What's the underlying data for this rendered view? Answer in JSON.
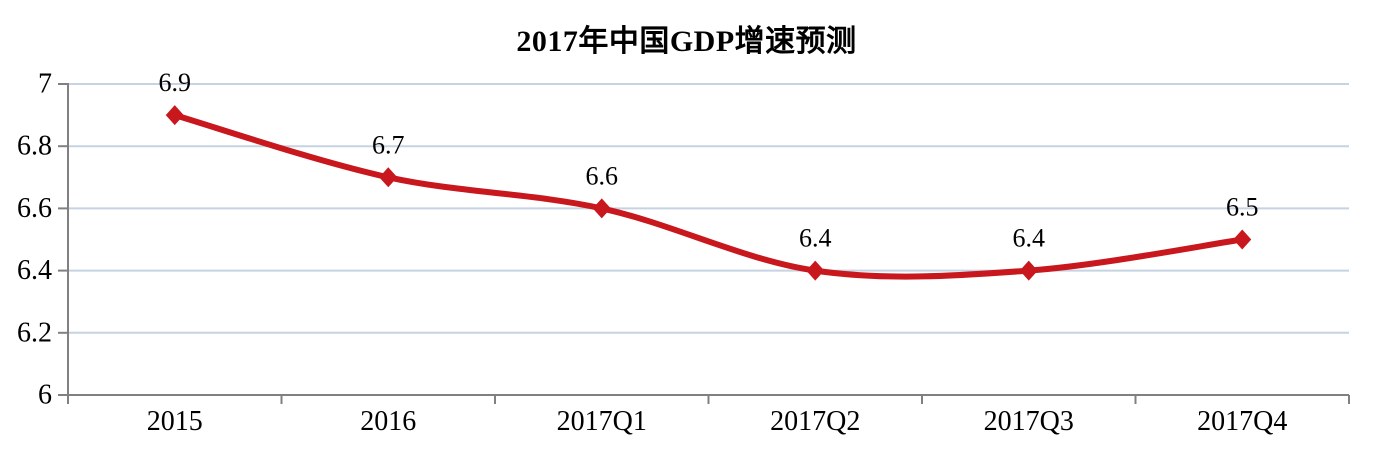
{
  "chart_data": {
    "type": "line",
    "title": "2017年中国GDP增速预测",
    "categories": [
      "2015",
      "2016",
      "2017Q1",
      "2017Q2",
      "2017Q3",
      "2017Q4"
    ],
    "series": [
      {
        "values": [
          6.9,
          6.7,
          6.6,
          6.4,
          6.4,
          6.5
        ]
      }
    ],
    "data_labels": [
      "6.9",
      "6.7",
      "6.6",
      "6.4",
      "6.4",
      "6.5"
    ],
    "xlabel": "",
    "ylabel": "",
    "ylim": [
      6,
      7
    ],
    "yticks": [
      6,
      6.2,
      6.4,
      6.6,
      6.8,
      7
    ],
    "ytick_labels": [
      "6",
      "6.2",
      "6.4",
      "6.6",
      "6.8",
      "7"
    ],
    "grid": true,
    "legend": "none",
    "smooth": true,
    "marker": "diamond",
    "colors": {
      "line": "#C8171D",
      "marker": "#C8171D",
      "gridline": "#C5D3E2",
      "axis": "#808080",
      "text": "#000000",
      "background": "#FFFFFF"
    }
  }
}
